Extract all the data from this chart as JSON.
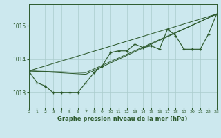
{
  "title": "Graphe pression niveau de la mer (hPa)",
  "background_color": "#cce8ee",
  "grid_color": "#aacccc",
  "line_color": "#2d5a2d",
  "xlim": [
    0,
    23
  ],
  "ylim": [
    1012.55,
    1015.65
  ],
  "yticks": [
    1013,
    1014,
    1015
  ],
  "xticks": [
    0,
    1,
    2,
    3,
    4,
    5,
    6,
    7,
    8,
    9,
    10,
    11,
    12,
    13,
    14,
    15,
    16,
    17,
    18,
    19,
    20,
    21,
    22,
    23
  ],
  "main_series": [
    1013.65,
    1013.3,
    1013.2,
    1013.0,
    1013.0,
    1013.0,
    1013.0,
    1013.3,
    1013.6,
    1013.8,
    1014.2,
    1014.25,
    1014.25,
    1014.45,
    1014.35,
    1014.4,
    1014.3,
    1014.9,
    1014.7,
    1014.3,
    1014.3,
    1014.3,
    1014.75,
    1015.35
  ],
  "trend1_x": [
    0,
    23
  ],
  "trend1_y": [
    1013.65,
    1015.35
  ],
  "trend2_x": [
    0,
    7,
    23
  ],
  "trend2_y": [
    1013.65,
    1013.55,
    1015.35
  ],
  "trend3_x": [
    0,
    7,
    23
  ],
  "trend3_y": [
    1013.65,
    1013.6,
    1015.35
  ]
}
